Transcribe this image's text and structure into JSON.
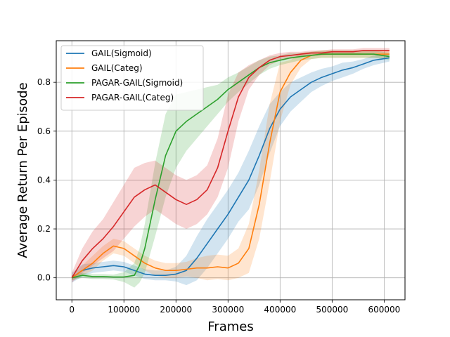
{
  "chart_data": {
    "type": "line",
    "title": "",
    "xlabel": "Frames",
    "ylabel": "Average Return Per Episode",
    "xlim": [
      -30000,
      640000
    ],
    "ylim": [
      -0.09,
      0.97
    ],
    "xticks": [
      0,
      100000,
      200000,
      300000,
      400000,
      500000,
      600000
    ],
    "xtick_labels": [
      "0",
      "100000",
      "200000",
      "300000",
      "400000",
      "500000",
      "600000"
    ],
    "yticks": [
      0.0,
      0.2,
      0.4,
      0.6,
      0.8
    ],
    "ytick_labels": [
      "0.0",
      "0.2",
      "0.4",
      "0.6",
      "0.8"
    ],
    "grid": true,
    "legend_position": "top-left",
    "series": [
      {
        "name": "GAIL(Sigmoid)",
        "color": "#1f77b4",
        "x": [
          0,
          20000,
          40000,
          60000,
          80000,
          100000,
          120000,
          140000,
          160000,
          180000,
          200000,
          220000,
          240000,
          260000,
          280000,
          300000,
          320000,
          340000,
          360000,
          380000,
          400000,
          420000,
          440000,
          460000,
          480000,
          500000,
          520000,
          540000,
          560000,
          580000,
          610000
        ],
        "y": [
          0.0,
          0.03,
          0.04,
          0.045,
          0.05,
          0.045,
          0.03,
          0.015,
          0.01,
          0.01,
          0.015,
          0.03,
          0.08,
          0.14,
          0.2,
          0.26,
          0.33,
          0.4,
          0.5,
          0.61,
          0.69,
          0.74,
          0.77,
          0.8,
          0.82,
          0.835,
          0.85,
          0.86,
          0.875,
          0.89,
          0.9
        ],
        "band": [
          0.02,
          0.025,
          0.02,
          0.02,
          0.02,
          0.02,
          0.02,
          0.02,
          0.02,
          0.02,
          0.03,
          0.06,
          0.09,
          0.1,
          0.1,
          0.1,
          0.1,
          0.12,
          0.12,
          0.1,
          0.07,
          0.06,
          0.05,
          0.04,
          0.035,
          0.03,
          0.03,
          0.025,
          0.02,
          0.02,
          0.015
        ]
      },
      {
        "name": "GAIL(Categ)",
        "color": "#ff7f0e",
        "x": [
          0,
          20000,
          40000,
          60000,
          80000,
          100000,
          120000,
          140000,
          160000,
          180000,
          200000,
          220000,
          240000,
          260000,
          280000,
          300000,
          320000,
          340000,
          360000,
          380000,
          400000,
          420000,
          440000,
          460000,
          480000,
          500000,
          520000,
          540000,
          560000,
          580000,
          610000
        ],
        "y": [
          0.0,
          0.03,
          0.06,
          0.1,
          0.13,
          0.12,
          0.09,
          0.06,
          0.04,
          0.03,
          0.03,
          0.035,
          0.04,
          0.04,
          0.045,
          0.04,
          0.06,
          0.12,
          0.3,
          0.55,
          0.76,
          0.84,
          0.89,
          0.91,
          0.915,
          0.915,
          0.915,
          0.915,
          0.915,
          0.915,
          0.915
        ],
        "band": [
          0.01,
          0.02,
          0.03,
          0.03,
          0.03,
          0.03,
          0.03,
          0.03,
          0.03,
          0.03,
          0.03,
          0.03,
          0.04,
          0.05,
          0.05,
          0.05,
          0.06,
          0.1,
          0.14,
          0.16,
          0.12,
          0.05,
          0.03,
          0.015,
          0.015,
          0.015,
          0.015,
          0.015,
          0.015,
          0.015,
          0.015
        ]
      },
      {
        "name": "PAGAR-GAIL(Sigmoid)",
        "color": "#2ca02c",
        "x": [
          0,
          20000,
          40000,
          60000,
          80000,
          100000,
          120000,
          130000,
          140000,
          160000,
          180000,
          200000,
          220000,
          240000,
          260000,
          280000,
          300000,
          320000,
          340000,
          360000,
          380000,
          400000,
          420000,
          440000,
          460000,
          480000,
          500000,
          520000,
          540000,
          560000,
          580000,
          610000
        ],
        "y": [
          0.0,
          0.01,
          0.005,
          0.005,
          0.003,
          0.003,
          0.01,
          0.05,
          0.12,
          0.32,
          0.5,
          0.6,
          0.64,
          0.67,
          0.7,
          0.73,
          0.77,
          0.8,
          0.83,
          0.86,
          0.88,
          0.89,
          0.9,
          0.905,
          0.91,
          0.915,
          0.915,
          0.915,
          0.915,
          0.915,
          0.915,
          0.905
        ],
        "band": [
          0.01,
          0.01,
          0.01,
          0.01,
          0.01,
          0.02,
          0.05,
          0.07,
          0.1,
          0.15,
          0.17,
          0.15,
          0.12,
          0.1,
          0.08,
          0.06,
          0.05,
          0.04,
          0.035,
          0.03,
          0.025,
          0.02,
          0.02,
          0.015,
          0.015,
          0.015,
          0.015,
          0.015,
          0.015,
          0.015,
          0.015,
          0.015
        ]
      },
      {
        "name": "PAGAR-GAIL(Categ)",
        "color": "#d62728",
        "x": [
          0,
          20000,
          40000,
          60000,
          80000,
          100000,
          120000,
          140000,
          160000,
          180000,
          200000,
          220000,
          240000,
          260000,
          280000,
          300000,
          320000,
          340000,
          360000,
          380000,
          400000,
          420000,
          440000,
          460000,
          480000,
          500000,
          520000,
          540000,
          560000,
          580000,
          610000
        ],
        "y": [
          0.0,
          0.07,
          0.12,
          0.16,
          0.21,
          0.27,
          0.33,
          0.36,
          0.38,
          0.35,
          0.32,
          0.3,
          0.32,
          0.36,
          0.45,
          0.6,
          0.74,
          0.82,
          0.86,
          0.89,
          0.905,
          0.91,
          0.915,
          0.92,
          0.92,
          0.925,
          0.925,
          0.925,
          0.93,
          0.93,
          0.93
        ],
        "band": [
          0.02,
          0.05,
          0.07,
          0.08,
          0.1,
          0.11,
          0.12,
          0.11,
          0.1,
          0.1,
          0.1,
          0.1,
          0.1,
          0.1,
          0.12,
          0.15,
          0.1,
          0.05,
          0.03,
          0.02,
          0.015,
          0.015,
          0.01,
          0.01,
          0.01,
          0.01,
          0.01,
          0.01,
          0.01,
          0.01,
          0.01
        ]
      }
    ]
  }
}
